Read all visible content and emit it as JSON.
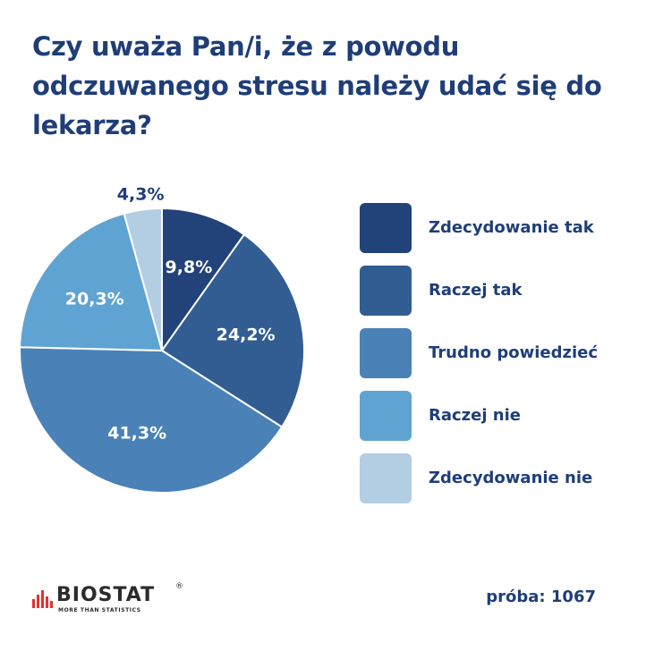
{
  "title": "Czy uważa Pan/i, że z powodu odczuwanego stresu należy udać się do lekarza?",
  "chart_data": {
    "type": "pie",
    "title": "Czy uważa Pan/i, że z powodu odczuwanego stresu należy udać się do lekarza?",
    "categories": [
      "Zdecydowanie tak",
      "Raczej tak",
      "Trudno powiedzieć",
      "Raczej nie",
      "Zdecydowanie nie"
    ],
    "values": [
      9.8,
      24.2,
      41.3,
      20.3,
      4.3
    ],
    "labels": [
      "9,8%",
      "24,2%",
      "41,3%",
      "20,3%",
      "4,3%"
    ],
    "colors": [
      "#21437a",
      "#315d93",
      "#4a82b8",
      "#5fa3d3",
      "#b3cde3"
    ],
    "label_colors": [
      "#ffffff",
      "#ffffff",
      "#ffffff",
      "#ffffff",
      "#1f3e78"
    ],
    "legend_position": "right"
  },
  "legend": {
    "items": [
      {
        "label": "Zdecydowanie tak",
        "color": "#21437a"
      },
      {
        "label": "Raczej tak",
        "color": "#315d93"
      },
      {
        "label": "Trudno powiedzieć",
        "color": "#4a82b8"
      },
      {
        "label": "Raczej nie",
        "color": "#5fa3d3"
      },
      {
        "label": "Zdecydowanie nie",
        "color": "#b3cde3"
      }
    ]
  },
  "logo": {
    "name": "BIOSTAT",
    "registered": "®",
    "tagline": "MORE THAN STATISTICS"
  },
  "sample_text": "próba: 1067"
}
